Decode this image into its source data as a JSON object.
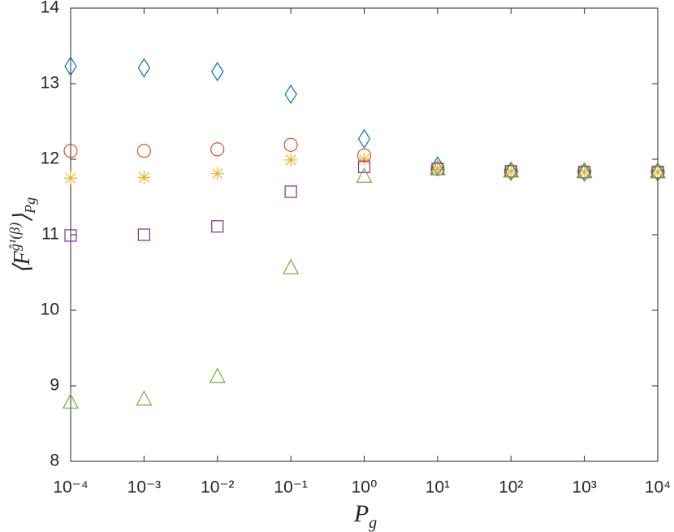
{
  "chart_data": {
    "type": "scatter",
    "xlabel": {
      "base": "P",
      "sub": "g"
    },
    "ylabel": {
      "base": "⟨F",
      "sup": "ĝ¹(β)",
      "close": "⟩",
      "sub": "Pg"
    },
    "xscale": "log",
    "x": [
      0.0001,
      0.001,
      0.01,
      0.1,
      1,
      10,
      100,
      1000,
      10000
    ],
    "xlim": [
      0.0001,
      10000
    ],
    "xticks": [
      {
        "value": 0.0001,
        "label": "10⁻⁴"
      },
      {
        "value": 0.001,
        "label": "10⁻³"
      },
      {
        "value": 0.01,
        "label": "10⁻²"
      },
      {
        "value": 0.1,
        "label": "10⁻¹"
      },
      {
        "value": 1,
        "label": "10⁰"
      },
      {
        "value": 10,
        "label": "10¹"
      },
      {
        "value": 100,
        "label": "10²"
      },
      {
        "value": 1000,
        "label": "10³"
      },
      {
        "value": 10000,
        "label": "10⁴"
      }
    ],
    "ylim": [
      8,
      14
    ],
    "yticks": [
      8,
      9,
      10,
      11,
      12,
      13,
      14
    ],
    "grid": false,
    "series": [
      {
        "color": "#0072BD",
        "marker": "diamond",
        "values": [
          13.23,
          13.21,
          13.16,
          12.86,
          12.27,
          11.91,
          11.84,
          11.83,
          11.83
        ]
      },
      {
        "color": "#D95319",
        "marker": "circle",
        "values": [
          12.11,
          12.11,
          12.13,
          12.19,
          12.05,
          11.87,
          11.84,
          11.83,
          11.83
        ]
      },
      {
        "color": "#EDB120",
        "marker": "asterisk",
        "values": [
          11.75,
          11.76,
          11.81,
          11.99,
          12.0,
          11.87,
          11.84,
          11.83,
          11.83
        ]
      },
      {
        "color": "#7E2F8E",
        "marker": "square",
        "values": [
          10.99,
          11.0,
          11.11,
          11.57,
          11.9,
          11.87,
          11.84,
          11.83,
          11.83
        ]
      },
      {
        "color": "#77AC30",
        "marker": "triangle",
        "values": [
          8.78,
          8.82,
          9.12,
          10.56,
          11.77,
          11.87,
          11.84,
          11.83,
          11.83
        ]
      }
    ]
  }
}
